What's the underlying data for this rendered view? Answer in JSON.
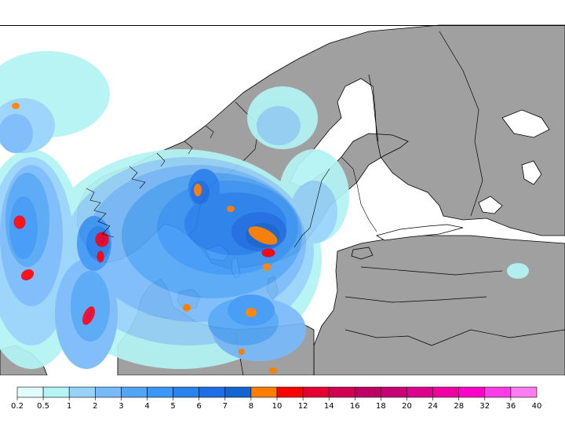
{
  "legend": {
    "colors": [
      "#e0fcfc",
      "#b4f4f4",
      "#96d2fa",
      "#78b9fa",
      "#50a5f5",
      "#3c96f5",
      "#2882f0",
      "#1e6ee6",
      "#1464d2",
      "#ff7d00",
      "#ff0000",
      "#e60032",
      "#d20050",
      "#be0064",
      "#c80078",
      "#dc008c",
      "#f000a0",
      "#ff00c8",
      "#ff3ce6",
      "#ff7df0"
    ],
    "labels": [
      "0.2",
      "0.5",
      "1",
      "2",
      "3",
      "4",
      "5",
      "6",
      "7",
      "8",
      "10",
      "12",
      "14",
      "16",
      "18",
      "20",
      "24",
      "28",
      "32",
      "36",
      "40"
    ]
  },
  "map": {
    "land_color": "#a0a0a0",
    "water_color": "#ffffff",
    "border_color": "#000000"
  }
}
